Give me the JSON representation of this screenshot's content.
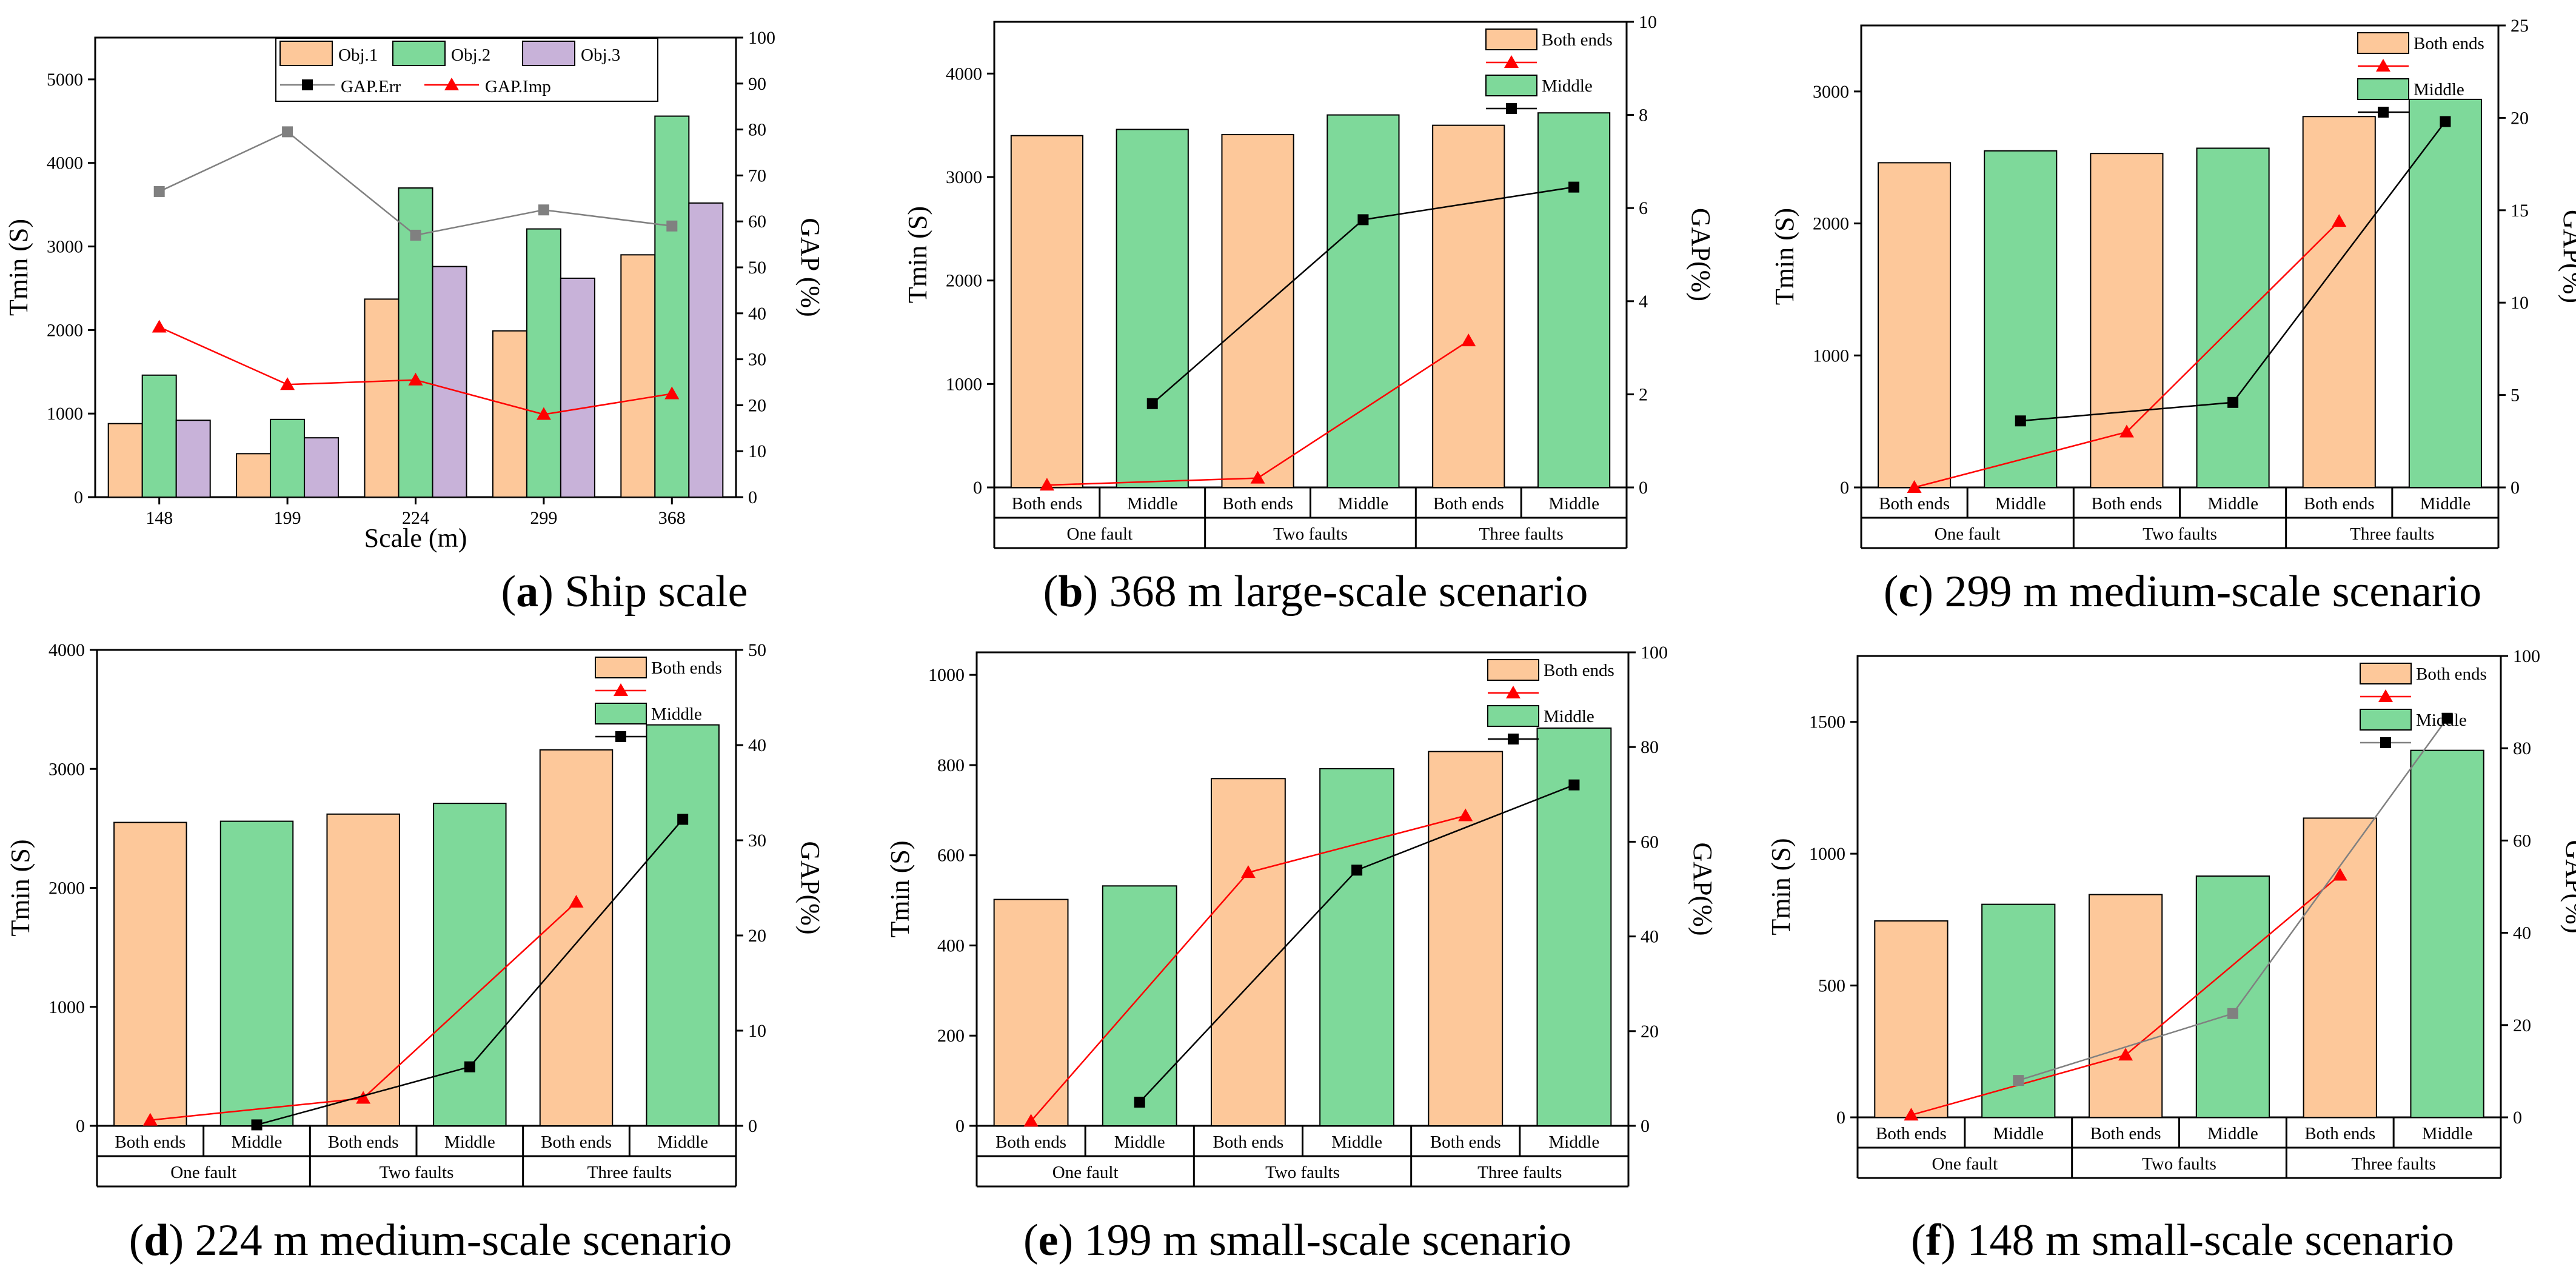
{
  "colors": {
    "obj1": "#fdc89a",
    "obj2": "#7ed99a",
    "obj3": "#c8b2d9",
    "gap_err": "#808080",
    "gap_err_marker": "#000000",
    "gap_imp": "#ff0000"
  },
  "chart_data": [
    {
      "id": "a",
      "type": "bar",
      "caption_letter": "a",
      "caption_text": "Ship scale",
      "ylabel": "Tmin (S)",
      "y2label": "GAP (%)",
      "xlabel": "Scale (m)",
      "ylim": [
        0,
        5500
      ],
      "yticks": [
        0,
        1000,
        2000,
        3000,
        4000,
        5000
      ],
      "y2lim": [
        0,
        100
      ],
      "y2ticks": [
        0,
        10,
        20,
        30,
        40,
        50,
        60,
        70,
        80,
        90,
        100
      ],
      "categories": [
        "148",
        "199",
        "224",
        "299",
        "368"
      ],
      "series": [
        {
          "name": "Obj.1",
          "values": [
            880,
            520,
            2370,
            1990,
            2900
          ]
        },
        {
          "name": "Obj.2",
          "values": [
            1460,
            930,
            3700,
            3210,
            4560
          ]
        },
        {
          "name": "Obj.3",
          "values": [
            920,
            710,
            2760,
            2620,
            3520
          ]
        }
      ],
      "lines": [
        {
          "name": "GAP.Err",
          "values": [
            66.5,
            79.5,
            57,
            62.5,
            59
          ]
        },
        {
          "name": "GAP.Imp",
          "values": [
            37,
            24.5,
            25.5,
            18,
            22.5
          ]
        }
      ]
    },
    {
      "id": "b",
      "type": "bar",
      "caption_letter": "b",
      "caption_text": "368 m large-scale scenario",
      "ylabel": "Tmin (S)",
      "y2label": "GAP(%)",
      "ylim": [
        0,
        4500
      ],
      "yticks": [
        0,
        1000,
        2000,
        3000,
        4000
      ],
      "y2lim": [
        0,
        10
      ],
      "y2ticks": [
        0,
        2,
        4,
        6,
        8,
        10
      ],
      "groups": [
        "One fault",
        "Two faults",
        "Three faults"
      ],
      "subcategories": [
        "Both ends",
        "Middle"
      ],
      "series": [
        {
          "name": "Both ends",
          "values": [
            3400,
            3410,
            3500
          ]
        },
        {
          "name": "Middle",
          "values": [
            3460,
            3600,
            3620
          ]
        }
      ],
      "lines": [
        {
          "name": "Both ends",
          "values": [
            0.05,
            0.2,
            3.15
          ]
        },
        {
          "name": "Middle",
          "values": [
            1.8,
            5.75,
            6.45
          ]
        }
      ]
    },
    {
      "id": "c",
      "type": "bar",
      "caption_letter": "c",
      "caption_text": "299 m medium-scale scenario",
      "ylabel": "Tmin (S)",
      "y2label": "GAP(%)",
      "ylim": [
        0,
        3500
      ],
      "yticks": [
        0,
        1000,
        2000,
        3000
      ],
      "y2lim": [
        0,
        25
      ],
      "y2ticks": [
        0,
        5,
        10,
        15,
        20,
        25
      ],
      "groups": [
        "One fault",
        "Two faults",
        "Three faults"
      ],
      "subcategories": [
        "Both ends",
        "Middle"
      ],
      "series": [
        {
          "name": "Both ends",
          "values": [
            2460,
            2530,
            2810
          ]
        },
        {
          "name": "Middle",
          "values": [
            2550,
            2570,
            2940
          ]
        }
      ],
      "lines": [
        {
          "name": "Both ends",
          "values": [
            0,
            3,
            14.4
          ]
        },
        {
          "name": "Middle",
          "values": [
            3.6,
            4.6,
            19.8
          ]
        }
      ]
    },
    {
      "id": "d",
      "type": "bar",
      "caption_letter": "d",
      "caption_text": "224 m medium-scale scenario",
      "ylabel": "Tmin (S)",
      "y2label": "GAP(%)",
      "ylim": [
        0,
        4000
      ],
      "yticks": [
        0,
        1000,
        2000,
        3000,
        4000
      ],
      "y2lim": [
        0,
        50
      ],
      "y2ticks": [
        0,
        10,
        20,
        30,
        40,
        50
      ],
      "groups": [
        "One fault",
        "Two faults",
        "Three faults"
      ],
      "subcategories": [
        "Both ends",
        "Middle"
      ],
      "series": [
        {
          "name": "Both ends",
          "values": [
            2550,
            2620,
            3160
          ]
        },
        {
          "name": "Middle",
          "values": [
            2560,
            2710,
            3370
          ]
        }
      ],
      "lines": [
        {
          "name": "Both ends",
          "values": [
            0.6,
            2.9,
            23.5
          ]
        },
        {
          "name": "Middle",
          "values": [
            0.1,
            6.2,
            32.2
          ]
        }
      ]
    },
    {
      "id": "e",
      "type": "bar",
      "caption_letter": "e",
      "caption_text": "199 m small-scale scenario",
      "ylabel": "Tmin (S)",
      "y2label": "GAP(%)",
      "ylim": [
        0,
        1050
      ],
      "yticks": [
        0,
        200,
        400,
        600,
        800,
        1000
      ],
      "y2lim": [
        0,
        100
      ],
      "y2ticks": [
        0,
        20,
        40,
        60,
        80,
        100
      ],
      "groups": [
        "One fault",
        "Two faults",
        "Three faults"
      ],
      "subcategories": [
        "Both ends",
        "Middle"
      ],
      "series": [
        {
          "name": "Both ends",
          "values": [
            502,
            770,
            830
          ]
        },
        {
          "name": "Middle",
          "values": [
            532,
            792,
            882
          ]
        }
      ],
      "lines": [
        {
          "name": "Both ends",
          "values": [
            1,
            53.5,
            65.5
          ]
        },
        {
          "name": "Middle",
          "values": [
            5,
            54,
            72
          ]
        }
      ]
    },
    {
      "id": "f",
      "type": "bar",
      "caption_letter": "f",
      "caption_text": "148 m small-scale scenario",
      "ylabel": "Tmin (S)",
      "y2label": "GAP(%)",
      "ylim": [
        0,
        1750
      ],
      "yticks": [
        0,
        500,
        1000,
        1500
      ],
      "y2lim": [
        0,
        100
      ],
      "y2ticks": [
        0,
        20,
        40,
        60,
        80,
        100
      ],
      "groups": [
        "One fault",
        "Two faults",
        "Three faults"
      ],
      "subcategories": [
        "Both ends",
        "Middle"
      ],
      "series": [
        {
          "name": "Both ends",
          "values": [
            745,
            845,
            1135
          ]
        },
        {
          "name": "Middle",
          "values": [
            808,
            915,
            1392
          ]
        }
      ],
      "lines": [
        {
          "name": "Both ends",
          "values": [
            0.5,
            13.5,
            52.5
          ]
        },
        {
          "name": "Middle",
          "values": [
            8,
            22.5,
            86.5
          ]
        }
      ]
    }
  ]
}
